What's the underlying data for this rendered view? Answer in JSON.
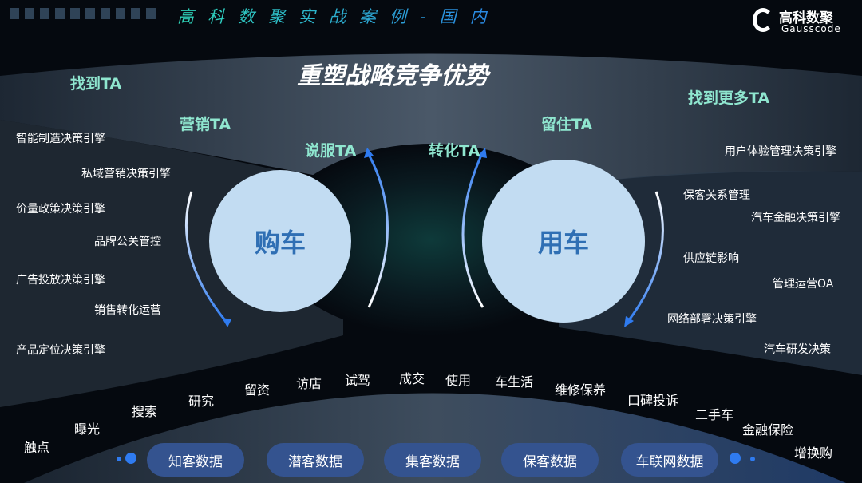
{
  "header": {
    "title": "高科数聚实战案例-国内",
    "logo_cn": "高科数聚",
    "logo_en": "Gausscode"
  },
  "title": "重塑战略竞争优势",
  "stages": {
    "find": "找到TA",
    "market": "营销TA",
    "persuade": "说服TA",
    "convert": "转化TA",
    "retain": "留住TA",
    "find_more": "找到更多TA"
  },
  "circles": {
    "buy": "购车",
    "use": "用车"
  },
  "left_items": [
    "智能制造决策引擎",
    "私域营销决策引擎",
    "价量政策决策引擎",
    "品牌公关管控",
    "广告投放决策引擎",
    "销售转化运营",
    "产品定位决策引擎"
  ],
  "right_items": [
    "用户体验管理决策引擎",
    "保客关系管理",
    "汽车金融决策引擎",
    "供应链影响",
    "管理运营OA",
    "网络部署决策引擎",
    "汽车研发决策"
  ],
  "journey": [
    "触点",
    "曝光",
    "搜索",
    "研究",
    "留资",
    "访店",
    "试驾",
    "成交",
    "使用",
    "车生活",
    "维修保养",
    "口碑投诉",
    "二手车",
    "金融保险",
    "增换购"
  ],
  "data_pills": [
    "知客数据",
    "潜客数据",
    "集客数据",
    "保客数据",
    "车联网数据"
  ],
  "colors": {
    "ta": "#8fe6cf",
    "circle": "#c2dcf2",
    "circle_text": "#2f6fb4",
    "pill": "#34538f",
    "arrow": "#2f7bf0"
  }
}
